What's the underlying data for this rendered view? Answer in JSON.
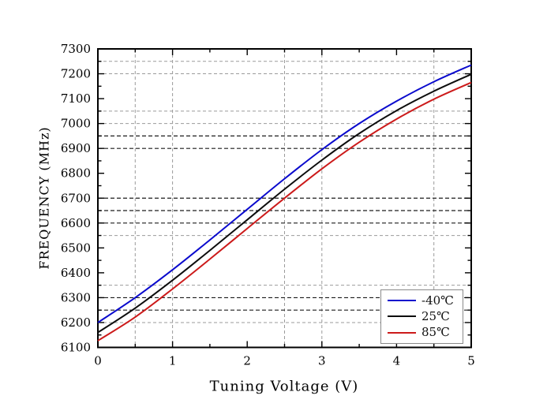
{
  "chart_data": {
    "type": "line",
    "title": "",
    "xlabel": "Tuning Voltage (V)",
    "ylabel": "FREQUENCY (MHz)",
    "xlim": [
      0,
      5
    ],
    "ylim": [
      6100,
      7300
    ],
    "x": [
      0,
      0.5,
      1,
      1.5,
      2,
      2.5,
      3,
      3.5,
      4,
      4.5,
      5
    ],
    "series": [
      {
        "name": "-40℃",
        "color": "#0a0acd",
        "values": [
          6200,
          6300,
          6412,
          6532,
          6655,
          6778,
          6895,
          7000,
          7090,
          7168,
          7235
        ]
      },
      {
        "name": "25℃",
        "color": "#0d0d0d",
        "values": [
          6160,
          6258,
          6370,
          6490,
          6613,
          6736,
          6853,
          6960,
          7052,
          7130,
          7198
        ]
      },
      {
        "name": "85℃",
        "color": "#cc1a1a",
        "values": [
          6127,
          6222,
          6335,
          6455,
          6578,
          6700,
          6818,
          6925,
          7018,
          7098,
          7165
        ]
      }
    ],
    "x_major_ticks": [
      0,
      1,
      2,
      3,
      4,
      5
    ],
    "x_tick_labels": [
      "0",
      "1",
      "2",
      "3",
      "4",
      "5"
    ],
    "x_minor_step": 0.5,
    "y_major_ticks": [
      6100,
      6200,
      6300,
      6400,
      6500,
      6600,
      6700,
      6800,
      6900,
      7000,
      7100,
      7200,
      7300
    ],
    "y_tick_labels": [
      "6100",
      "6200",
      "6300",
      "6400",
      "6500",
      "6600",
      "6700",
      "6800",
      "6900",
      "7000",
      "7100",
      "7200",
      "7300"
    ],
    "y_minor_step": 50,
    "grid": {
      "vertical_gray_v": [
        0.5,
        1.0,
        2.5,
        3.0,
        4.5
      ],
      "horizontal_gray_mhz": [
        6200,
        6350,
        6550,
        7000,
        7050,
        7200,
        7250
      ],
      "horizontal_dark_mhz": [
        6250,
        6300,
        6600,
        6650,
        6700,
        6900,
        6950
      ],
      "gray_color": "#9b9b9b",
      "dark_color": "#1c1c1c"
    },
    "legend_position": "bottom-right",
    "legend_entries": [
      "-40℃",
      "25℃",
      "85℃"
    ]
  }
}
